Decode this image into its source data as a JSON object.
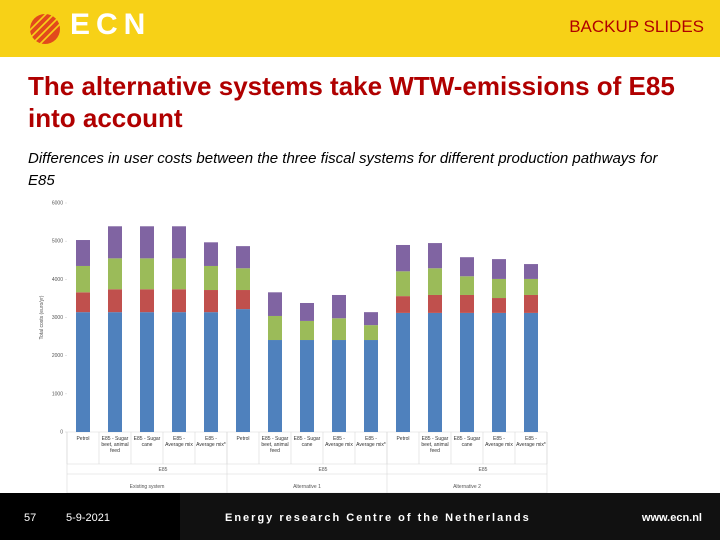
{
  "header": {
    "logo": "ECN",
    "label": "BACKUP SLIDES"
  },
  "title": "The alternative systems take WTW-emissions of E85 into account",
  "subtitle": "Differences in user costs between the three fiscal systems for different production pathways for E85",
  "chart_data": {
    "type": "stacked_bar",
    "y_label": "Total costs (euro/yr)",
    "categories": [
      "Petrol",
      "E85 - Sugar beet, animal feed",
      "E85 - Sugar cane",
      "E85 - Average mix",
      "E85 - Average mix*",
      "Petrol",
      "E85 - Sugar beet, animal feed",
      "E85 - Sugar cane",
      "E85 - Average mix",
      "E85 - Average mix*",
      "Petrol",
      "E85 - Sugar beet, animal feed",
      "E85 - Sugar cane",
      "E85 - Average mix",
      "E85 - Average mix*"
    ],
    "groups": [
      {
        "label": "Existing system",
        "sub_label": "E85"
      },
      {
        "label": "Alternative 1",
        "sub_label": "E85"
      },
      {
        "label": "Alternative 2",
        "sub_label": "E85"
      }
    ],
    "series": [
      {
        "color": "#4f81bd",
        "values": [
          3140,
          3140,
          3140,
          3140,
          3140,
          3220,
          2410,
          2410,
          2410,
          2410,
          3120,
          3120,
          3120,
          3120,
          3120
        ]
      },
      {
        "color": "#c0504d",
        "values": [
          520,
          600,
          600,
          600,
          580,
          500,
          0,
          0,
          0,
          0,
          440,
          470,
          470,
          390,
          470
        ]
      },
      {
        "color": "#9bbb59",
        "values": [
          690,
          810,
          810,
          810,
          630,
          570,
          630,
          500,
          570,
          390,
          650,
          700,
          490,
          500,
          420
        ]
      },
      {
        "color": "#8064a2",
        "values": [
          680,
          840,
          840,
          840,
          620,
          580,
          620,
          470,
          610,
          340,
          690,
          660,
          500,
          520,
          390
        ]
      }
    ],
    "ylim": [
      0,
      6000
    ],
    "yticks": [
      0,
      1000,
      2000,
      3000,
      4000,
      5000,
      6000
    ],
    "grid": false
  },
  "footer": {
    "page": "57",
    "date": "5-9-2021",
    "org": "Energy research Centre of the Netherlands",
    "url": "www.ecn.nl"
  }
}
